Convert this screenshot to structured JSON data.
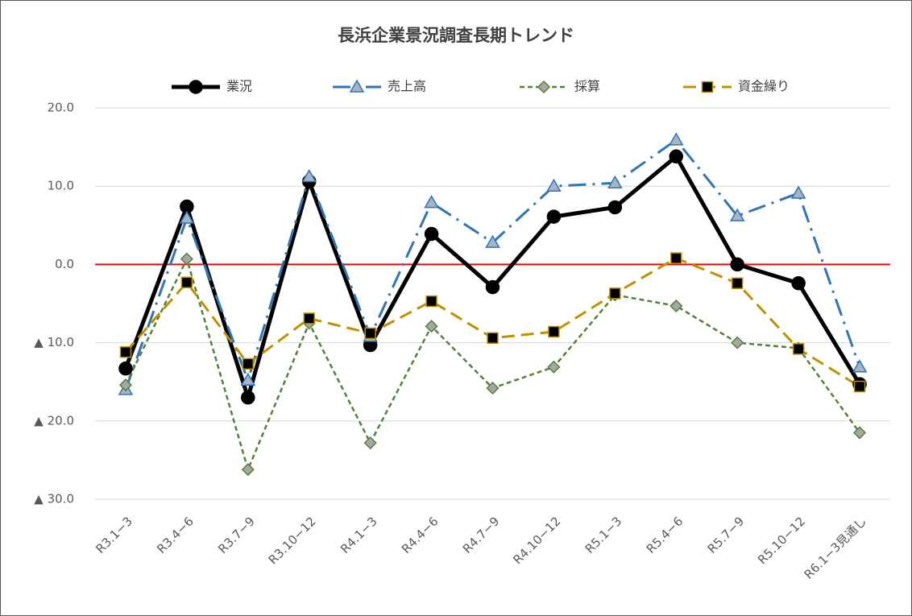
{
  "chart_data": {
    "type": "line",
    "title": "長浜企業景況調査長期トレンド",
    "categories": [
      "R3.1−3",
      "R3.4−6",
      "R3.7−9",
      "R3.10−12",
      "R4.1−3",
      "R4.4−6",
      "R4.7−9",
      "R4.10−12",
      "R5.1−3",
      "R5.4−6",
      "R5.7−9",
      "R5.10−12",
      "R6.1−3見通し"
    ],
    "series": [
      {
        "name": "業況",
        "color": "#000000",
        "width": 5,
        "dash": "none",
        "marker": "circle",
        "marker_fill": "#000000",
        "values": [
          -13.3,
          7.4,
          -17.0,
          10.6,
          -10.3,
          3.9,
          -2.9,
          6.1,
          7.3,
          13.8,
          0.0,
          -2.4,
          -15.3
        ]
      },
      {
        "name": "売上高",
        "color": "#2e75b6",
        "width": 3,
        "dash": "22 8 3 8",
        "marker": "triangle",
        "marker_fill": "#a6b4c6",
        "values": [
          -16.0,
          5.9,
          -14.8,
          11.2,
          -9.2,
          7.9,
          2.8,
          10.0,
          10.4,
          15.9,
          6.2,
          9.1,
          -13.1
        ]
      },
      {
        "name": "採算",
        "color": "#548235",
        "width": 2.5,
        "dash": "6 4",
        "marker": "diamond",
        "marker_fill": "#a6a6a6",
        "values": [
          -15.4,
          0.7,
          -26.2,
          -7.5,
          -22.8,
          -7.9,
          -15.8,
          -13.1,
          -3.9,
          -5.3,
          -10.0,
          -10.7,
          -21.5
        ]
      },
      {
        "name": "資金繰り",
        "color": "#bf9000",
        "width": 3,
        "dash": "16 8",
        "marker": "square",
        "marker_fill": "#000000",
        "values": [
          -11.2,
          -2.3,
          -12.7,
          -6.9,
          -8.8,
          -4.7,
          -9.4,
          -8.6,
          -3.7,
          0.8,
          -2.4,
          -10.8,
          -15.6
        ]
      }
    ],
    "ylim": [
      -30,
      20
    ],
    "yticks": [
      {
        "value": 20,
        "label": "20.0"
      },
      {
        "value": 10,
        "label": "10.0"
      },
      {
        "value": 0,
        "label": "0.0"
      },
      {
        "value": -10,
        "label": "▲ 10.0"
      },
      {
        "value": -20,
        "label": "▲ 20.0"
      },
      {
        "value": -30,
        "label": "▲ 30.0"
      }
    ],
    "grid": true,
    "zero_line_color": "#ff0000",
    "legend": "top"
  }
}
